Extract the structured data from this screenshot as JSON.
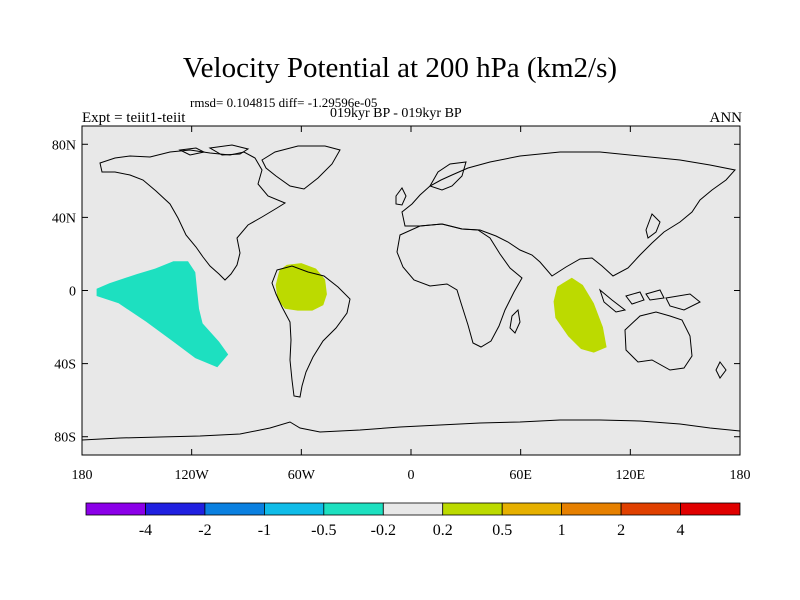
{
  "title": "Velocity Potential at 200 hPa (km2/s)",
  "stats_line": "rmsd= 0.104815 diff= -1.29596e-05",
  "periods": "019kyr BP - 019kyr BP",
  "experiment": "Expt = teiit1-teiit",
  "season": "ANN",
  "map": {
    "projection": "cylindrical equidistant",
    "lon_range": [
      -180,
      180
    ],
    "lat_range": [
      -90,
      90
    ],
    "background_color": "#e8e8e8",
    "coastline_color": "#000000",
    "y_ticks": [
      {
        "lat": 80,
        "label": "80N"
      },
      {
        "lat": 40,
        "label": "40N"
      },
      {
        "lat": 0,
        "label": "0"
      },
      {
        "lat": -40,
        "label": "40S"
      },
      {
        "lat": -80,
        "label": "80S"
      }
    ],
    "x_ticks": [
      {
        "lon": -180,
        "label": "180"
      },
      {
        "lon": -120,
        "label": "120W"
      },
      {
        "lon": -60,
        "label": "60W"
      },
      {
        "lon": 0,
        "label": "0"
      },
      {
        "lon": 60,
        "label": "60E"
      },
      {
        "lon": 120,
        "label": "120E"
      },
      {
        "lon": 180,
        "label": "180"
      }
    ],
    "anomalies": [
      {
        "name": "eastern-pacific-negative-anomaly",
        "range": "-0.5 to -0.2",
        "color": "#1de0c0",
        "outline": [
          [
            -172,
            1
          ],
          [
            -165,
            4
          ],
          [
            -150,
            9
          ],
          [
            -140,
            12
          ],
          [
            -130,
            16
          ],
          [
            -122,
            16
          ],
          [
            -118,
            10
          ],
          [
            -117,
            0
          ],
          [
            -116,
            -10
          ],
          [
            -114,
            -18
          ],
          [
            -105,
            -28
          ],
          [
            -100,
            -35
          ],
          [
            -106,
            -42
          ],
          [
            -118,
            -37
          ],
          [
            -130,
            -28
          ],
          [
            -145,
            -17
          ],
          [
            -160,
            -7
          ],
          [
            -172,
            -3
          ]
        ]
      },
      {
        "name": "amazon-positive-anomaly",
        "range": "0.2 to 0.5",
        "color": "#bcda00",
        "outline": [
          [
            -72,
            11
          ],
          [
            -68,
            14
          ],
          [
            -60,
            15
          ],
          [
            -52,
            12
          ],
          [
            -47,
            6
          ],
          [
            -46,
            -2
          ],
          [
            -48,
            -8
          ],
          [
            -54,
            -11
          ],
          [
            -62,
            -11
          ],
          [
            -69,
            -10
          ],
          [
            -73,
            -5
          ],
          [
            -74,
            3
          ]
        ]
      },
      {
        "name": "indian-ocean-positive-anomaly",
        "range": "0.2 to 0.5",
        "color": "#bcda00",
        "outline": [
          [
            83,
            4
          ],
          [
            88,
            7
          ],
          [
            94,
            3
          ],
          [
            100,
            -7
          ],
          [
            105,
            -20
          ],
          [
            107,
            -31
          ],
          [
            100,
            -34
          ],
          [
            93,
            -32
          ],
          [
            86,
            -25
          ],
          [
            79,
            -15
          ],
          [
            78,
            -6
          ],
          [
            80,
            2
          ]
        ]
      }
    ]
  },
  "colorbar": {
    "colors": [
      "#8b00e8",
      "#2020e0",
      "#0a80e0",
      "#10bce8",
      "#1de0c0",
      "#e8e8e8",
      "#bcda00",
      "#e6b000",
      "#e68000",
      "#e04000",
      "#e00000"
    ],
    "labels": [
      "-4",
      "-2",
      "-1",
      "-0.5",
      "-0.2",
      "0.2",
      "0.5",
      "1",
      "2",
      "4"
    ]
  }
}
